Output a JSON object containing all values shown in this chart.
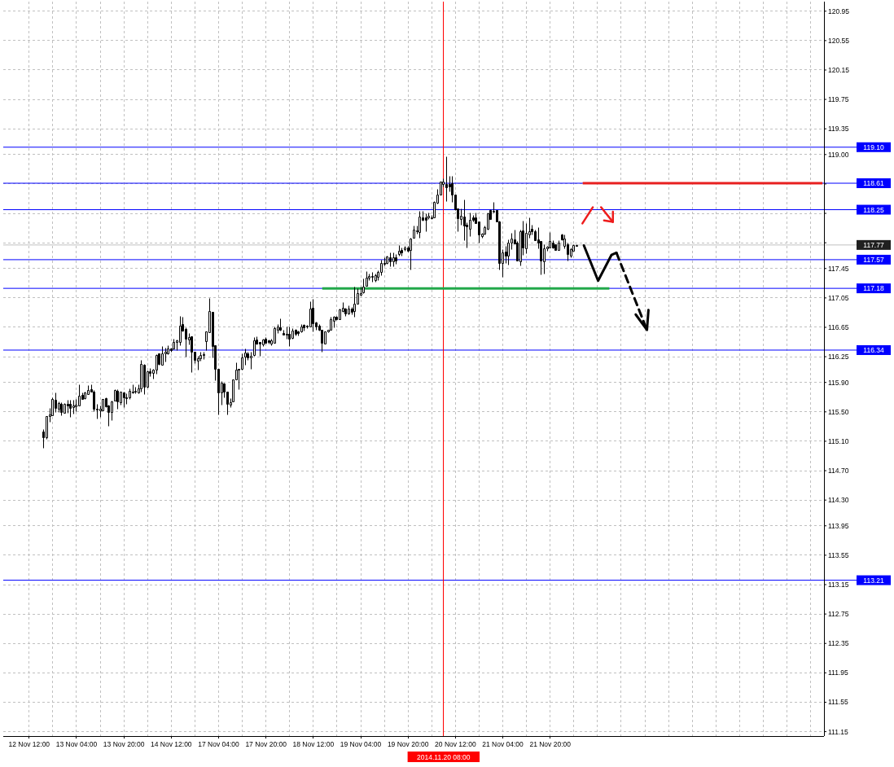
{
  "chart_data": {
    "type": "candlestick",
    "categories": [
      "12 Nov 12:00",
      null,
      null,
      null,
      null,
      null,
      null,
      null,
      null,
      null,
      null,
      null,
      null,
      null,
      null,
      null,
      "13 Nov 04:00",
      null,
      null,
      null,
      null,
      null,
      null,
      null,
      null,
      null,
      null,
      null,
      null,
      null,
      null,
      null,
      "13 Nov 20:00",
      null,
      null,
      null,
      null,
      null,
      null,
      null,
      null,
      null,
      null,
      null,
      null,
      null,
      null,
      null,
      "14 Nov 12:00",
      null,
      null,
      null,
      null,
      null,
      null,
      null,
      null,
      null,
      null,
      null,
      null,
      null,
      null,
      null,
      "17 Nov 04:00",
      null,
      null,
      null,
      null,
      null,
      null,
      null,
      null,
      null,
      null,
      null,
      null,
      null,
      null,
      null,
      "17 Nov 20:00",
      null,
      null,
      null,
      null,
      null,
      null,
      null,
      null,
      null,
      null,
      null,
      null,
      null,
      null,
      null,
      "18 Nov 12:00",
      null,
      null,
      null,
      null,
      null,
      null,
      null,
      null,
      null,
      null,
      null,
      null,
      null,
      null,
      null,
      "19 Nov 04:00",
      null,
      null,
      null,
      null,
      null,
      null,
      null,
      null,
      null,
      null,
      null,
      null,
      null,
      null,
      null,
      "19 Nov 20:00",
      null,
      null,
      null,
      null,
      null,
      null,
      null,
      null,
      null,
      null,
      null,
      "2014.11.20 08:00",
      null,
      null,
      null,
      "20 Nov 12:00",
      null,
      null,
      null,
      null,
      null,
      null,
      null,
      null,
      null,
      null,
      null,
      null,
      null,
      null,
      null,
      "21 Nov 04:00",
      null,
      null,
      null,
      null,
      null,
      null,
      null,
      null,
      null,
      null,
      null,
      null,
      null,
      null,
      null,
      "21 Nov 20:00",
      null,
      null,
      null,
      null,
      null,
      null,
      null,
      null,
      null,
      null,
      null,
      null,
      null,
      null,
      null,
      null,
      null,
      null,
      null,
      null,
      null,
      null,
      null,
      null,
      null,
      null,
      null,
      null,
      null,
      null,
      null,
      null,
      null,
      null,
      null,
      null,
      null,
      null,
      null,
      null,
      null,
      null,
      null,
      null,
      null,
      null,
      null,
      null,
      null,
      null,
      null,
      null,
      null,
      null,
      null,
      null,
      null,
      null,
      null,
      null,
      null,
      null,
      null,
      null,
      null,
      null,
      null,
      null,
      null,
      null,
      null,
      null,
      null,
      null,
      null,
      null,
      null,
      null,
      null,
      null,
      null,
      null,
      null,
      null,
      null,
      null,
      null,
      null,
      null,
      null,
      null,
      null
    ],
    "ohlc": [
      null,
      null,
      null,
      null,
      null,
      [
        115.23,
        115.26,
        115.01,
        115.16
      ],
      [
        115.15,
        115.44,
        115.13,
        115.44
      ],
      [
        115.44,
        115.55,
        115.37,
        115.46
      ],
      [
        115.45,
        115.7,
        115.45,
        115.68
      ],
      [
        115.66,
        115.76,
        115.5,
        115.55
      ],
      [
        115.54,
        115.64,
        115.5,
        115.62
      ],
      [
        115.61,
        115.63,
        115.45,
        115.5
      ],
      [
        115.49,
        115.62,
        115.49,
        115.61
      ],
      [
        115.61,
        115.66,
        115.49,
        115.59
      ],
      [
        115.61,
        115.66,
        115.43,
        115.55
      ],
      [
        115.56,
        115.66,
        115.48,
        115.59
      ],
      [
        115.58,
        115.67,
        115.51,
        115.6
      ],
      [
        115.59,
        115.88,
        115.59,
        115.72
      ],
      [
        115.73,
        115.76,
        115.67,
        115.68
      ],
      [
        115.69,
        115.78,
        115.68,
        115.76
      ],
      [
        115.74,
        115.86,
        115.74,
        115.8
      ],
      [
        115.81,
        115.88,
        115.78,
        115.78
      ],
      [
        115.78,
        115.8,
        115.51,
        115.54
      ],
      [
        115.54,
        115.61,
        115.41,
        115.53
      ],
      [
        115.52,
        115.59,
        115.43,
        115.54
      ],
      [
        115.52,
        115.68,
        115.52,
        115.68
      ],
      [
        115.69,
        115.7,
        115.56,
        115.57
      ],
      [
        115.59,
        115.6,
        115.31,
        115.5
      ],
      [
        115.5,
        115.65,
        115.39,
        115.64
      ],
      [
        115.65,
        115.81,
        115.65,
        115.8
      ],
      [
        115.79,
        115.81,
        115.54,
        115.64
      ],
      [
        115.63,
        115.77,
        115.6,
        115.77
      ],
      [
        115.76,
        115.77,
        115.56,
        115.7
      ],
      [
        115.7,
        115.75,
        115.61,
        115.69
      ],
      [
        115.7,
        115.82,
        115.67,
        115.79
      ],
      [
        115.77,
        115.88,
        115.75,
        115.78
      ],
      [
        115.77,
        115.84,
        115.75,
        115.79
      ],
      [
        115.76,
        115.87,
        115.75,
        115.82
      ],
      [
        115.82,
        116.21,
        115.77,
        116.15
      ],
      [
        116.14,
        116.15,
        115.74,
        115.84
      ],
      [
        115.84,
        116.06,
        115.83,
        116.05
      ],
      [
        116.05,
        116.1,
        115.99,
        116.03
      ],
      [
        116.03,
        116.09,
        115.95,
        116.07
      ],
      [
        116.07,
        116.28,
        116.02,
        116.27
      ],
      [
        116.29,
        116.3,
        116.14,
        116.15
      ],
      [
        116.14,
        116.39,
        116.14,
        116.29
      ],
      [
        116.29,
        116.37,
        116.19,
        116.32
      ],
      [
        116.3,
        116.41,
        116.28,
        116.36
      ],
      [
        116.36,
        116.37,
        116.32,
        116.34
      ],
      [
        116.36,
        116.5,
        116.35,
        116.45
      ],
      [
        116.45,
        116.48,
        116.34,
        116.47
      ],
      [
        116.45,
        116.8,
        116.41,
        116.67
      ],
      [
        116.69,
        116.79,
        116.59,
        116.61
      ],
      [
        116.63,
        116.65,
        116.25,
        116.49
      ],
      [
        116.48,
        116.57,
        116.42,
        116.52
      ],
      [
        116.53,
        116.53,
        116.04,
        116.32
      ],
      [
        116.32,
        116.32,
        116.16,
        116.21
      ],
      [
        116.2,
        116.26,
        116.07,
        116.23
      ],
      [
        116.23,
        116.32,
        116.2,
        116.27
      ],
      [
        116.28,
        116.32,
        116.22,
        116.27
      ],
      [
        116.46,
        116.6,
        116.34,
        116.6
      ],
      [
        116.58,
        117.05,
        116.58,
        116.87
      ],
      [
        116.86,
        116.86,
        116.24,
        116.4
      ],
      [
        116.41,
        116.41,
        115.93,
        116.08
      ],
      [
        116.08,
        116.08,
        115.47,
        115.76
      ],
      [
        115.76,
        115.92,
        115.6,
        115.9
      ],
      [
        115.89,
        115.9,
        115.7,
        115.78
      ],
      [
        115.78,
        115.78,
        115.46,
        115.61
      ],
      [
        115.6,
        115.69,
        115.56,
        115.63
      ],
      [
        115.64,
        115.94,
        115.64,
        115.94
      ],
      [
        115.94,
        116.17,
        115.94,
        116.07
      ],
      [
        116.08,
        116.08,
        115.81,
        116.07
      ],
      [
        116.08,
        116.29,
        116.07,
        116.24
      ],
      [
        116.25,
        116.36,
        116.14,
        116.31
      ],
      [
        116.29,
        116.32,
        116.21,
        116.24
      ],
      [
        116.24,
        116.32,
        116.08,
        116.26
      ],
      [
        116.27,
        116.52,
        116.26,
        116.47
      ],
      [
        116.48,
        116.53,
        116.42,
        116.43
      ],
      [
        116.45,
        116.45,
        116.26,
        116.43
      ],
      [
        116.42,
        116.5,
        116.4,
        116.48
      ],
      [
        116.49,
        116.52,
        116.43,
        116.44
      ],
      [
        116.47,
        116.48,
        116.43,
        116.45
      ],
      [
        116.43,
        116.49,
        116.41,
        116.47
      ],
      [
        116.44,
        116.66,
        116.44,
        116.64
      ],
      [
        116.62,
        116.69,
        116.57,
        116.66
      ],
      [
        116.65,
        116.77,
        116.61,
        116.62
      ],
      [
        116.57,
        116.62,
        116.55,
        116.55
      ],
      [
        116.56,
        116.66,
        116.5,
        116.56
      ],
      [
        116.56,
        116.66,
        116.39,
        116.49
      ],
      [
        116.51,
        116.64,
        116.49,
        116.61
      ],
      [
        116.62,
        116.63,
        116.54,
        116.56
      ],
      [
        116.59,
        116.61,
        116.54,
        116.57
      ],
      [
        116.59,
        116.69,
        116.58,
        116.66
      ],
      [
        116.68,
        116.69,
        116.61,
        116.65
      ],
      [
        116.67,
        116.68,
        116.64,
        116.66
      ],
      [
        116.66,
        117.0,
        116.66,
        116.91
      ],
      [
        116.92,
        117.04,
        116.59,
        116.7
      ],
      [
        116.72,
        116.73,
        116.62,
        116.66
      ],
      [
        116.67,
        116.69,
        116.61,
        116.62
      ],
      [
        116.62,
        116.62,
        116.32,
        116.44
      ],
      [
        116.43,
        116.59,
        116.43,
        116.59
      ],
      [
        116.59,
        116.62,
        116.58,
        116.62
      ],
      [
        116.62,
        116.79,
        116.62,
        116.76
      ],
      [
        116.74,
        116.8,
        116.65,
        116.79
      ],
      [
        116.79,
        116.8,
        116.75,
        116.76
      ],
      [
        116.76,
        116.9,
        116.76,
        116.89
      ],
      [
        116.87,
        116.99,
        116.86,
        116.92
      ],
      [
        116.91,
        116.92,
        116.8,
        116.84
      ],
      [
        116.84,
        116.95,
        116.83,
        116.9
      ],
      [
        116.91,
        116.93,
        116.83,
        116.86
      ],
      [
        116.87,
        117.2,
        116.79,
        116.97
      ],
      [
        116.97,
        117.18,
        116.97,
        117.11
      ],
      [
        117.09,
        117.2,
        117.08,
        117.12
      ],
      [
        117.13,
        117.31,
        117.11,
        117.2
      ],
      [
        117.22,
        117.41,
        117.22,
        117.33
      ],
      [
        117.32,
        117.38,
        117.29,
        117.35
      ],
      [
        117.35,
        117.4,
        117.27,
        117.34
      ],
      [
        117.29,
        117.38,
        117.27,
        117.36
      ],
      [
        117.34,
        117.42,
        117.29,
        117.4
      ],
      [
        117.4,
        117.57,
        117.36,
        117.52
      ],
      [
        117.53,
        117.6,
        117.49,
        117.51
      ],
      [
        117.53,
        117.63,
        117.51,
        117.61
      ],
      [
        117.6,
        117.67,
        117.48,
        117.55
      ],
      [
        117.55,
        117.67,
        117.48,
        117.6
      ],
      [
        117.6,
        117.65,
        117.51,
        117.56
      ],
      [
        117.65,
        117.77,
        117.63,
        117.69
      ],
      [
        117.7,
        117.73,
        117.63,
        117.67
      ],
      [
        117.71,
        117.76,
        117.69,
        117.74
      ],
      [
        117.73,
        117.76,
        117.68,
        117.69
      ],
      [
        117.7,
        117.87,
        117.44,
        117.86
      ],
      [
        117.87,
        118.03,
        117.87,
        117.98
      ],
      [
        117.96,
        118.03,
        117.92,
        117.97
      ],
      [
        117.95,
        118.23,
        117.87,
        118.16
      ],
      [
        118.15,
        118.23,
        118.1,
        118.11
      ],
      [
        118.15,
        118.2,
        117.96,
        118.11
      ],
      [
        118.14,
        118.21,
        118.12,
        118.17
      ],
      [
        118.14,
        118.18,
        118.12,
        118.14
      ],
      [
        118.14,
        118.37,
        118.14,
        118.36
      ],
      [
        118.34,
        118.53,
        118.33,
        118.46
      ],
      [
        118.46,
        118.63,
        118.46,
        118.63
      ],
      [
        118.6,
        118.68,
        118.57,
        118.63
      ],
      [
        118.6,
        118.98,
        118.37,
        118.56
      ],
      [
        118.6,
        118.71,
        118.5,
        118.57
      ],
      [
        118.61,
        118.71,
        118.36,
        118.45
      ],
      [
        118.45,
        118.46,
        118.25,
        118.26
      ],
      [
        118.27,
        118.27,
        117.96,
        118.13
      ],
      [
        118.12,
        118.27,
        118.05,
        118.17
      ],
      [
        118.16,
        118.39,
        117.83,
        118.03
      ],
      [
        118.05,
        118.08,
        117.73,
        118.02
      ],
      [
        117.99,
        118.21,
        117.89,
        118.11
      ],
      [
        118.14,
        118.18,
        118.09,
        118.11
      ],
      [
        118.15,
        118.21,
        118.07,
        118.07
      ],
      [
        118.09,
        118.09,
        117.8,
        117.91
      ],
      [
        117.89,
        117.94,
        117.87,
        117.92
      ],
      [
        117.92,
        118.03,
        117.91,
        118.01
      ],
      [
        117.99,
        118.21,
        117.98,
        118.2
      ],
      [
        118.24,
        118.26,
        118.12,
        118.12
      ],
      [
        118.23,
        118.36,
        118.21,
        118.23
      ],
      [
        118.24,
        118.25,
        118.09,
        118.09
      ],
      [
        118.09,
        118.1,
        117.44,
        117.53
      ],
      [
        117.53,
        117.71,
        117.34,
        117.67
      ],
      [
        117.68,
        117.76,
        117.53,
        117.62
      ],
      [
        117.62,
        117.85,
        117.5,
        117.8
      ],
      [
        117.8,
        117.94,
        117.71,
        117.86
      ],
      [
        117.85,
        117.98,
        117.79,
        117.79
      ],
      [
        117.8,
        117.82,
        117.56,
        117.56
      ],
      [
        117.55,
        117.98,
        117.49,
        117.96
      ],
      [
        117.97,
        118.1,
        117.64,
        117.74
      ],
      [
        117.72,
        118.07,
        117.66,
        117.93
      ],
      [
        117.91,
        118.14,
        117.87,
        117.96
      ],
      [
        117.99,
        118.05,
        117.91,
        117.96
      ],
      [
        117.96,
        117.98,
        117.83,
        117.83
      ],
      [
        117.85,
        118.01,
        117.72,
        117.8
      ],
      [
        117.82,
        117.82,
        117.37,
        117.56
      ],
      [
        117.55,
        117.78,
        117.38,
        117.72
      ],
      [
        117.72,
        117.76,
        117.69,
        117.75
      ],
      [
        117.74,
        117.95,
        117.73,
        117.82
      ],
      [
        117.8,
        117.84,
        117.72,
        117.74
      ],
      [
        117.78,
        117.78,
        117.7,
        117.7
      ],
      [
        117.7,
        117.83,
        117.7,
        117.8
      ],
      [
        117.91,
        117.92,
        117.84,
        117.85
      ],
      [
        117.76,
        117.91,
        117.72,
        117.86
      ],
      [
        117.78,
        117.8,
        117.56,
        117.65
      ],
      [
        117.63,
        117.73,
        117.6,
        117.71
      ],
      [
        117.69,
        117.78,
        117.69,
        117.77
      ],
      [
        117.77,
        117.78,
        117.77,
        117.77
      ],
      null,
      null,
      null,
      null,
      null,
      null,
      null,
      null,
      null,
      null,
      null,
      null,
      null,
      null,
      null,
      null,
      null,
      null,
      null,
      null,
      null,
      null,
      null,
      null,
      null,
      null,
      null,
      null,
      null,
      null,
      null,
      null,
      null,
      null,
      null,
      null,
      null,
      null,
      null,
      null,
      null,
      null,
      null,
      null,
      null,
      null,
      null,
      null,
      null,
      null,
      null,
      null,
      null,
      null,
      null,
      null,
      null,
      null,
      null,
      null,
      null,
      null,
      null,
      null,
      null,
      null,
      null,
      null,
      null,
      null,
      null,
      null,
      null,
      null,
      null,
      null,
      null,
      null,
      null,
      null,
      null,
      null,
      null
    ],
    "series": [
      {
        "type": "line",
        "color": "#22a84a",
        "values": [
          null,
          null,
          null,
          null,
          null,
          null,
          null,
          null,
          null,
          null,
          null,
          null,
          null,
          null,
          null,
          null,
          null,
          null,
          null,
          null,
          null,
          null,
          null,
          null,
          null,
          null,
          null,
          null,
          null,
          null,
          null,
          null,
          null,
          null,
          null,
          null,
          null,
          null,
          null,
          null,
          null,
          null,
          null,
          null,
          null,
          null,
          null,
          null,
          null,
          null,
          null,
          null,
          null,
          null,
          null,
          null,
          null,
          null,
          null,
          null,
          null,
          null,
          null,
          null,
          null,
          null,
          null,
          null,
          null,
          null,
          null,
          null,
          null,
          null,
          null,
          null,
          null,
          null,
          null,
          null,
          null,
          null,
          null,
          null,
          null,
          null,
          null,
          null,
          null,
          null,
          null,
          null,
          null,
          null,
          null,
          null,
          null,
          null,
          null,
          117.18,
          117.18,
          117.18,
          117.18,
          117.18,
          117.18,
          117.18,
          117.18,
          117.18,
          117.18,
          117.18,
          117.18,
          117.18,
          117.18,
          117.18,
          117.18,
          117.18,
          117.18,
          117.18,
          117.18,
          117.18,
          117.18,
          117.18,
          117.18,
          117.18,
          117.18,
          117.18,
          117.18,
          117.18,
          117.18,
          117.18,
          117.18,
          117.18,
          117.18,
          117.18,
          117.18,
          117.18,
          117.18,
          117.18,
          117.18,
          117.18,
          117.18,
          117.18,
          117.18,
          117.18,
          117.18,
          117.18,
          117.18,
          117.18,
          117.18,
          117.18,
          117.18,
          117.18,
          117.18,
          117.18,
          117.18,
          117.18,
          117.18,
          117.18,
          117.18,
          117.18,
          117.18,
          117.18,
          117.18,
          117.18,
          117.18,
          117.18,
          117.18,
          117.18,
          117.18,
          117.18,
          117.18,
          117.18,
          117.18,
          117.18,
          117.18,
          117.18,
          117.18,
          117.18,
          117.18,
          117.18,
          117.18,
          117.18,
          117.18,
          117.18,
          117.18,
          117.18,
          117.18,
          117.18,
          117.18,
          117.18,
          117.18,
          117.18,
          117.18,
          117.18,
          117.18,
          117.18,
          117.18,
          null,
          null,
          null,
          null,
          null,
          null,
          null,
          null,
          null,
          null,
          null,
          null,
          null,
          null,
          null,
          null,
          null,
          null,
          null,
          null,
          null,
          null,
          null,
          null,
          null,
          null,
          null,
          null,
          null,
          null,
          null,
          null,
          null,
          null,
          null,
          null,
          null,
          null,
          null,
          null,
          null,
          null,
          null,
          null,
          null,
          null,
          null,
          null,
          null,
          null,
          null,
          null,
          null,
          null,
          null,
          null,
          null,
          null,
          null,
          null,
          null,
          null,
          null,
          null,
          null,
          null,
          null,
          null,
          null,
          null,
          null,
          null
        ]
      },
      {
        "type": "line",
        "color": "#e82020",
        "values": [
          null,
          null,
          null,
          null,
          null,
          null,
          null,
          null,
          null,
          null,
          null,
          null,
          null,
          null,
          null,
          null,
          null,
          null,
          null,
          null,
          null,
          null,
          null,
          null,
          null,
          null,
          null,
          null,
          null,
          null,
          null,
          null,
          null,
          null,
          null,
          null,
          null,
          null,
          null,
          null,
          null,
          null,
          null,
          null,
          null,
          null,
          null,
          null,
          null,
          null,
          null,
          null,
          null,
          null,
          null,
          null,
          null,
          null,
          null,
          null,
          null,
          null,
          null,
          null,
          null,
          null,
          null,
          null,
          null,
          null,
          null,
          null,
          null,
          null,
          null,
          null,
          null,
          null,
          null,
          null,
          null,
          null,
          null,
          null,
          null,
          null,
          null,
          null,
          null,
          null,
          null,
          null,
          null,
          null,
          null,
          null,
          null,
          null,
          null,
          null,
          null,
          null,
          null,
          null,
          null,
          null,
          null,
          null,
          null,
          null,
          null,
          null,
          null,
          null,
          null,
          null,
          null,
          null,
          null,
          null,
          null,
          null,
          null,
          null,
          null,
          null,
          null,
          null,
          null,
          null,
          null,
          null,
          null,
          null,
          null,
          null,
          null,
          null,
          null,
          null,
          null,
          null,
          null,
          null,
          null,
          null,
          null,
          null,
          null,
          null,
          null,
          null,
          null,
          null,
          null,
          null,
          null,
          null,
          null,
          null,
          null,
          null,
          null,
          null,
          null,
          null,
          null,
          null,
          null,
          null,
          null,
          null,
          null,
          null,
          null,
          null,
          null,
          null,
          null,
          null,
          null,
          null,
          null,
          null,
          null,
          null,
          null,
          118.61,
          118.61,
          118.61,
          118.61,
          118.61,
          118.61,
          118.61,
          118.61,
          118.61,
          118.61,
          118.61,
          118.61,
          118.61,
          118.61,
          118.61,
          118.61,
          118.61,
          118.61,
          118.61,
          118.61,
          118.61,
          118.61,
          118.61,
          118.61,
          118.61,
          118.61,
          118.61,
          118.61,
          118.61,
          118.61,
          118.61,
          118.61,
          118.61,
          118.61,
          118.61,
          118.61,
          118.61,
          118.61,
          118.61,
          118.61,
          118.61,
          118.61,
          118.61,
          118.61,
          118.61,
          118.61,
          118.61,
          118.61,
          118.61,
          118.61,
          118.61,
          118.61,
          118.61,
          118.61,
          118.61,
          118.61,
          118.61,
          118.61,
          118.61,
          118.61,
          118.61,
          118.61,
          118.61,
          118.61,
          118.61,
          118.61,
          118.61,
          118.61,
          118.61,
          118.61,
          118.61,
          118.61,
          118.61,
          118.61,
          118.61,
          118.61,
          118.61,
          118.61,
          118.61,
          118.61,
          118.61,
          118.61
        ]
      }
    ],
    "ylim": [
      111.09,
      121.08
    ],
    "yticks": [
      120.95,
      120.55,
      120.15,
      119.75,
      119.35,
      {
        "value": 119,
        "label": "119.00"
      },
      {
        "value": 118.6,
        "label": null
      },
      {
        "value": 118.2,
        "label": null
      },
      {
        "value": 117.8,
        "label": null
      },
      117.45,
      117.05,
      116.65,
      116.25,
      {
        "value": 115.9,
        "label": "115.90"
      },
      {
        "value": 115.5,
        "label": "115.50"
      },
      {
        "value": 115.1,
        "label": "115.10"
      },
      {
        "value": 114.7,
        "label": "114.70"
      },
      {
        "value": 114.3,
        "label": "114.30"
      },
      113.95,
      113.55,
      113.15,
      112.75,
      112.35,
      111.95,
      111.55,
      111.15
    ],
    "grid": true,
    "ref_lines": [
      {
        "axis": "y",
        "value": 119.1,
        "label": "119.10",
        "color": "#0000ff"
      },
      {
        "axis": "y",
        "value": 118.61,
        "label": "118.61",
        "color": "#0000ff"
      },
      {
        "axis": "y",
        "value": 118.25,
        "label": "118.25",
        "color": "#0000ff"
      },
      {
        "axis": "y",
        "value": 117.77,
        "label": "117.77",
        "color": "#c0c0c0"
      },
      {
        "axis": "y",
        "value": 117.57,
        "label": "117.57",
        "color": "#0000ff"
      },
      {
        "axis": "y",
        "value": 117.18,
        "label": "117.18",
        "color": "#0000ff"
      },
      {
        "axis": "y",
        "value": 116.34,
        "label": "116.34",
        "color": "#0000ff"
      },
      {
        "axis": "y",
        "value": 113.21,
        "label": "113.21",
        "color": "#0000ff"
      },
      {
        "axis": "x",
        "value": "2014.11.20 08:00",
        "color": "#ff0000"
      }
    ]
  }
}
